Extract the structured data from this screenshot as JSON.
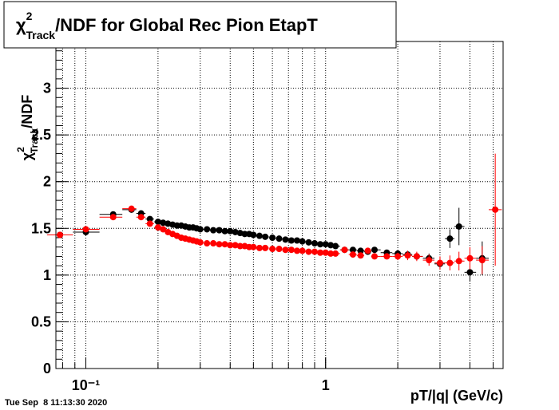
{
  "chart_data": {
    "type": "scatter",
    "title": {
      "symbol": "χ",
      "sup": "2",
      "sub": "Track",
      "rest": "/NDF for Global Rec Pion EtapT"
    },
    "y_label": {
      "symbol": "χ",
      "sup": "2",
      "sub": "Track",
      "rest": "/NDF"
    },
    "x_label": "pT/|q| (GeV/c)",
    "footer": "Tue Sep  8 11:13:30 2020",
    "xscale": "log",
    "xlim": [
      0.075,
      5.5
    ],
    "xticks": [
      {
        "value": 0.1,
        "label": "10⁻¹"
      },
      1
    ],
    "ylim": [
      0,
      3.5
    ],
    "yticks": [
      0,
      0.5,
      1,
      1.5,
      2,
      2.5,
      3
    ],
    "grid": true,
    "x": [
      0.078,
      0.1,
      0.13,
      0.155,
      0.17,
      0.185,
      0.2,
      0.21,
      0.22,
      0.23,
      0.24,
      0.25,
      0.26,
      0.27,
      0.28,
      0.29,
      0.3,
      0.32,
      0.34,
      0.36,
      0.38,
      0.4,
      0.42,
      0.44,
      0.46,
      0.48,
      0.5,
      0.53,
      0.56,
      0.6,
      0.64,
      0.68,
      0.72,
      0.76,
      0.8,
      0.85,
      0.9,
      0.95,
      1.0,
      1.05,
      1.1,
      1.2,
      1.3,
      1.4,
      1.5,
      1.6,
      1.8,
      2.0,
      2.2,
      2.4,
      2.7,
      3.0,
      3.3,
      3.6,
      4.0,
      4.5,
      5.1
    ],
    "series": [
      {
        "color": "#000000",
        "values": [
          1.43,
          1.46,
          1.65,
          1.7,
          1.66,
          1.6,
          1.57,
          1.56,
          1.55,
          1.54,
          1.53,
          1.53,
          1.52,
          1.51,
          1.51,
          1.5,
          1.49,
          1.49,
          1.48,
          1.48,
          1.47,
          1.47,
          1.46,
          1.45,
          1.44,
          1.44,
          1.43,
          1.42,
          1.41,
          1.4,
          1.39,
          1.38,
          1.37,
          1.37,
          1.36,
          1.35,
          1.34,
          1.33,
          1.33,
          1.32,
          1.31,
          1.27,
          1.27,
          1.26,
          1.25,
          1.27,
          1.24,
          1.23,
          1.22,
          1.2,
          1.18,
          1.12,
          1.39,
          1.52,
          1.03,
          1.18,
          null
        ],
        "errors": [
          0.03,
          0.03,
          0.03,
          0.03,
          0.02,
          0.02,
          0.02,
          0.02,
          0.02,
          0.02,
          0.02,
          0.02,
          0.02,
          0.02,
          0.02,
          0.02,
          0.02,
          0.02,
          0.02,
          0.02,
          0.02,
          0.02,
          0.02,
          0.02,
          0.02,
          0.02,
          0.02,
          0.02,
          0.02,
          0.02,
          0.02,
          0.02,
          0.02,
          0.02,
          0.02,
          0.02,
          0.02,
          0.02,
          0.02,
          0.03,
          0.03,
          0.03,
          0.03,
          0.03,
          0.03,
          0.03,
          0.03,
          0.03,
          0.04,
          0.04,
          0.05,
          0.06,
          0.1,
          0.2,
          0.1,
          0.18,
          null
        ]
      },
      {
        "color": "#ff0000",
        "values": [
          1.43,
          1.49,
          1.62,
          1.71,
          1.62,
          1.55,
          1.51,
          1.49,
          1.46,
          1.44,
          1.42,
          1.4,
          1.39,
          1.38,
          1.37,
          1.36,
          1.35,
          1.34,
          1.34,
          1.33,
          1.33,
          1.32,
          1.32,
          1.31,
          1.31,
          1.3,
          1.3,
          1.29,
          1.29,
          1.28,
          1.28,
          1.27,
          1.27,
          1.26,
          1.26,
          1.25,
          1.25,
          1.24,
          1.24,
          1.23,
          1.23,
          1.27,
          1.22,
          1.21,
          1.26,
          1.2,
          1.2,
          1.2,
          1.21,
          1.2,
          1.16,
          1.13,
          1.13,
          1.15,
          1.18,
          1.16,
          1.7
        ],
        "errors": [
          0.03,
          0.03,
          0.03,
          0.03,
          0.02,
          0.02,
          0.02,
          0.02,
          0.02,
          0.02,
          0.02,
          0.02,
          0.02,
          0.02,
          0.02,
          0.02,
          0.02,
          0.02,
          0.02,
          0.02,
          0.02,
          0.02,
          0.02,
          0.02,
          0.02,
          0.02,
          0.02,
          0.02,
          0.02,
          0.02,
          0.02,
          0.02,
          0.02,
          0.02,
          0.02,
          0.02,
          0.02,
          0.02,
          0.02,
          0.03,
          0.03,
          0.03,
          0.03,
          0.03,
          0.03,
          0.03,
          0.03,
          0.04,
          0.05,
          0.05,
          0.06,
          0.07,
          0.08,
          0.1,
          0.12,
          0.15,
          0.6
        ]
      }
    ]
  }
}
